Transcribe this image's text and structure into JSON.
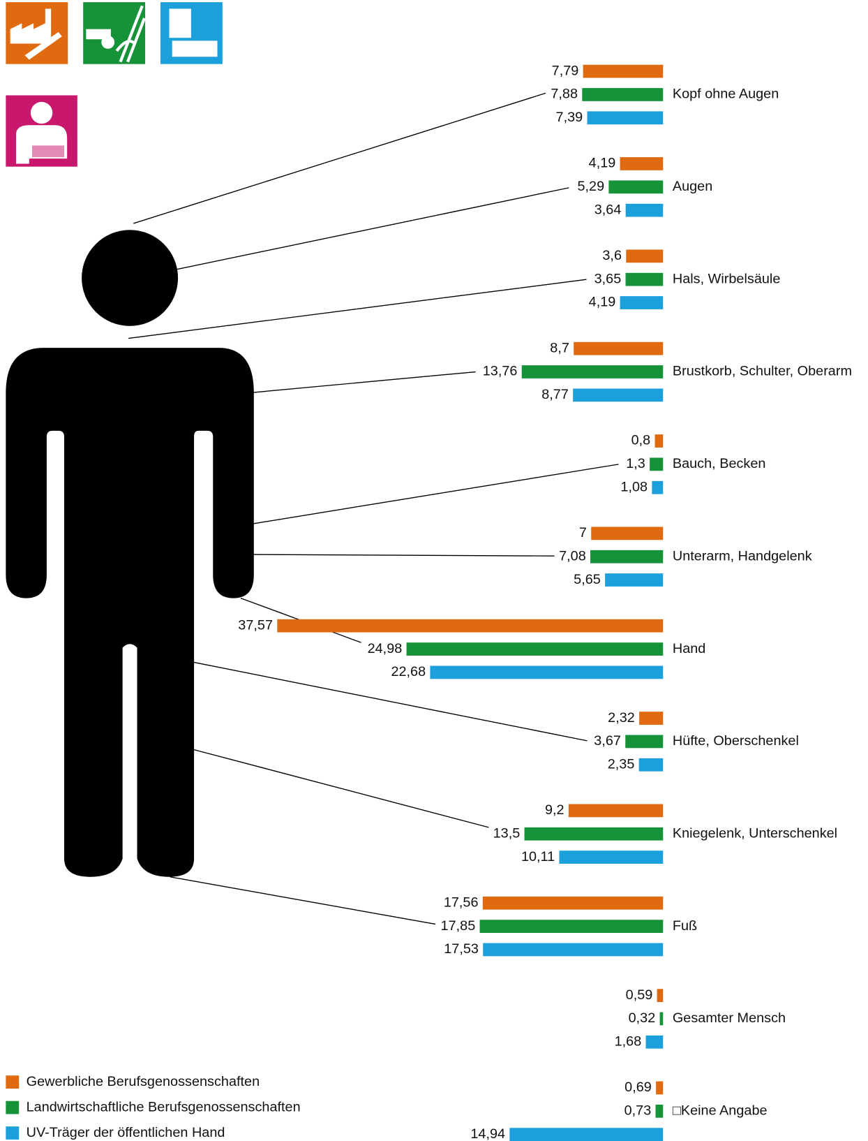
{
  "chart_data": {
    "type": "bar",
    "categories": [
      "Kopf ohne Augen",
      "Augen",
      "Hals, Wirbelsäule",
      "Brustkorb, Schulter, Oberarm",
      "Bauch, Becken",
      "Unterarm, Handgelenk",
      "Hand",
      "Hüfte, Oberschenkel",
      "Kniegelenk, Unterschenkel",
      "Fuß",
      "Gesamter Mensch",
      "□Keine Angabe"
    ],
    "series": [
      {
        "name": "Gewerbliche  Berufsgenossenschaften",
        "color": "#e06a10",
        "values": [
          7.79,
          4.19,
          3.6,
          8.7,
          0.8,
          7,
          37.57,
          2.32,
          9.2,
          17.56,
          0.59,
          0.69
        ],
        "value_labels": [
          "7,79",
          "4,19",
          "3,6",
          "8,7",
          "0,8",
          "7",
          "37,57",
          "2,32",
          "9,2",
          "17,56",
          "0,59",
          "0,69"
        ]
      },
      {
        "name": "Landwirtschaftliche  Berufsgenossenschaften",
        "color": "#169238",
        "values": [
          7.88,
          5.29,
          3.65,
          13.76,
          1.3,
          7.08,
          24.98,
          3.67,
          13.5,
          17.85,
          0.32,
          0.73
        ],
        "value_labels": [
          "7,88",
          "5,29",
          "3,65",
          "13,76",
          "1,3",
          "7,08",
          "24,98",
          "3,67",
          "13,5",
          "17,85",
          "0,32",
          "0,73"
        ]
      },
      {
        "name": "UV-Träger der öffentlichen Hand",
        "color": "#1ba0dc",
        "values": [
          7.39,
          3.64,
          4.19,
          8.77,
          1.08,
          5.65,
          22.68,
          2.35,
          10.11,
          17.53,
          1.68,
          14.94
        ],
        "value_labels": [
          "7,39",
          "3,64",
          "4,19",
          "8,77",
          "1,08",
          "5,65",
          "22,68",
          "2,35",
          "10,11",
          "17,53",
          "1,68",
          "14,94"
        ]
      }
    ]
  }
}
